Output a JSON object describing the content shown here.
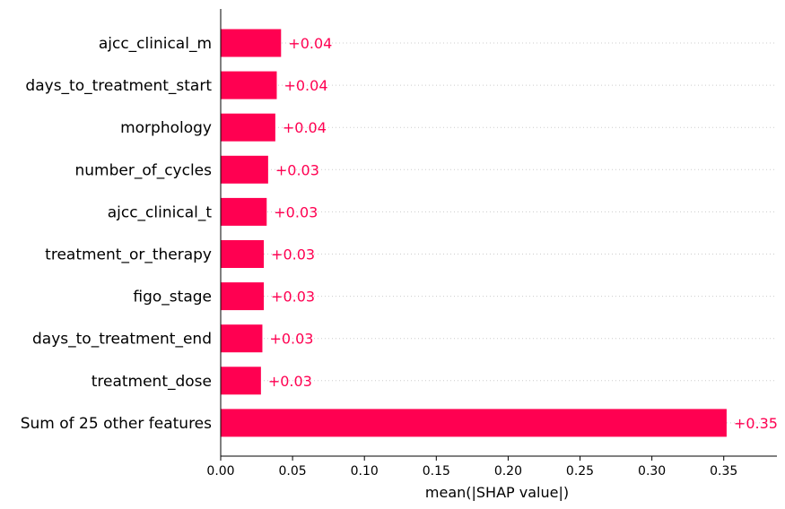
{
  "chart_data": {
    "type": "bar",
    "orientation": "horizontal",
    "categories": [
      "ajcc_clinical_m",
      "days_to_treatment_start",
      "morphology",
      "number_of_cycles",
      "ajcc_clinical_t",
      "treatment_or_therapy",
      "figo_stage",
      "days_to_treatment_end",
      "treatment_dose",
      "Sum of 25 other features"
    ],
    "values": [
      0.042,
      0.039,
      0.038,
      0.033,
      0.032,
      0.03,
      0.03,
      0.029,
      0.028,
      0.352
    ],
    "value_labels": [
      "+0.04",
      "+0.04",
      "+0.04",
      "+0.03",
      "+0.03",
      "+0.03",
      "+0.03",
      "+0.03",
      "+0.03",
      "+0.35"
    ],
    "xlabel": "mean(|SHAP value|)",
    "ylabel": "",
    "title": "",
    "xlim": [
      0,
      0.387
    ],
    "xticks": [
      0.0,
      0.05,
      0.1,
      0.15,
      0.2,
      0.25,
      0.3,
      0.35
    ],
    "xtick_labels": [
      "0.00",
      "0.05",
      "0.10",
      "0.15",
      "0.20",
      "0.25",
      "0.30",
      "0.35"
    ],
    "grid": false,
    "bar_color": "#ff0051",
    "label_color": "#ff0051"
  }
}
